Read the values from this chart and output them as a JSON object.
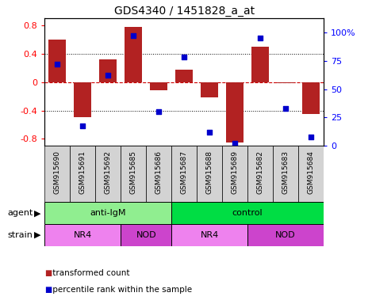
{
  "title": "GDS4340 / 1451828_a_at",
  "samples": [
    "GSM915690",
    "GSM915691",
    "GSM915692",
    "GSM915685",
    "GSM915686",
    "GSM915687",
    "GSM915688",
    "GSM915689",
    "GSM915682",
    "GSM915683",
    "GSM915684"
  ],
  "bar_values": [
    0.6,
    -0.5,
    0.32,
    0.78,
    -0.12,
    0.18,
    -0.22,
    -0.85,
    0.5,
    -0.02,
    -0.45
  ],
  "scatter_values": [
    72,
    18,
    62,
    97,
    30,
    78,
    12,
    2,
    95,
    33,
    8
  ],
  "ylim_left": [
    -0.9,
    0.9
  ],
  "ylim_right": [
    0,
    112.5
  ],
  "yticks_left": [
    -0.8,
    -0.4,
    0.0,
    0.4,
    0.8
  ],
  "ytick_labels_left": [
    "-0.8",
    "-0.4",
    "0",
    "0.4",
    "0.8"
  ],
  "yticks_right": [
    0,
    25,
    50,
    75,
    100
  ],
  "ytick_labels_right": [
    "0",
    "25",
    "50",
    "75",
    "100%"
  ],
  "bar_color": "#b22222",
  "scatter_color": "#0000cc",
  "zero_line_color": "#cc0000",
  "dotted_line_color": "#000000",
  "sample_box_color": "#d3d3d3",
  "agent_groups": [
    {
      "label": "anti-IgM",
      "start": 0,
      "end": 5,
      "color": "#90ee90"
    },
    {
      "label": "control",
      "start": 5,
      "end": 11,
      "color": "#00dd44"
    }
  ],
  "strain_groups": [
    {
      "label": "NR4",
      "start": 0,
      "end": 3,
      "color": "#ee82ee"
    },
    {
      "label": "NOD",
      "start": 3,
      "end": 5,
      "color": "#cc44cc"
    },
    {
      "label": "NR4",
      "start": 5,
      "end": 8,
      "color": "#ee82ee"
    },
    {
      "label": "NOD",
      "start": 8,
      "end": 11,
      "color": "#cc44cc"
    }
  ],
  "legend_items": [
    {
      "label": " transformed count",
      "color": "#b22222"
    },
    {
      "label": " percentile rank within the sample",
      "color": "#0000cc"
    }
  ],
  "bar_width": 0.7,
  "fig_width": 4.69,
  "fig_height": 3.84,
  "dpi": 100
}
